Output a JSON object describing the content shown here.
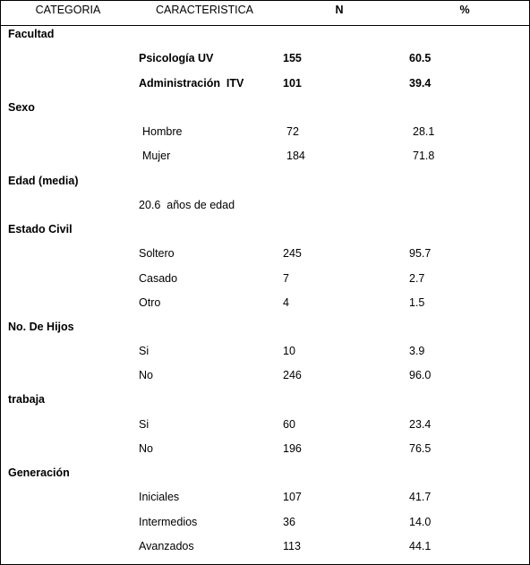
{
  "header": {
    "categoria": "CATEGORIA",
    "caracteristica": "CARACTERISTICA",
    "n": "N",
    "pct": "%"
  },
  "facultad": {
    "label": "Facultad",
    "rows": [
      {
        "name": "Psicología UV",
        "n": "155",
        "pct": "60.5"
      },
      {
        "name": "Administración  ITV",
        "n": "101",
        "pct": "39.4"
      }
    ]
  },
  "sexo": {
    "label": "Sexo",
    "rows": [
      {
        "name": "Hombre",
        "n": "72",
        "pct": "28.1"
      },
      {
        "name": "Mujer",
        "n": "184",
        "pct": "71.8"
      }
    ]
  },
  "edad": {
    "label": "Edad (media)",
    "value": "20.6  años de edad"
  },
  "estado_civil": {
    "label": "Estado Civil",
    "rows": [
      {
        "name": "Soltero",
        "n": "245",
        "pct": "95.7"
      },
      {
        "name": "Casado",
        "n": "7",
        "pct": "2.7"
      },
      {
        "name": "Otro",
        "n": "4",
        "pct": "1.5"
      }
    ]
  },
  "hijos": {
    "label": "No. De Hijos",
    "rows": [
      {
        "name": "Si",
        "n": "10",
        "pct": "3.9"
      },
      {
        "name": "No",
        "n": "246",
        "pct": "96.0"
      }
    ]
  },
  "trabaja": {
    "label": "trabaja",
    "rows": [
      {
        "name": "Si",
        "n": "60",
        "pct": "23.4"
      },
      {
        "name": "No",
        "n": "196",
        "pct": "76.5"
      }
    ]
  },
  "generacion": {
    "label": "Generación",
    "rows": [
      {
        "name": "Iniciales",
        "n": "107",
        "pct": "41.7"
      },
      {
        "name": "Intermedios",
        "n": "36",
        "pct": "14.0"
      },
      {
        "name": "Avanzados",
        "n": "113",
        "pct": "44.1"
      }
    ]
  }
}
